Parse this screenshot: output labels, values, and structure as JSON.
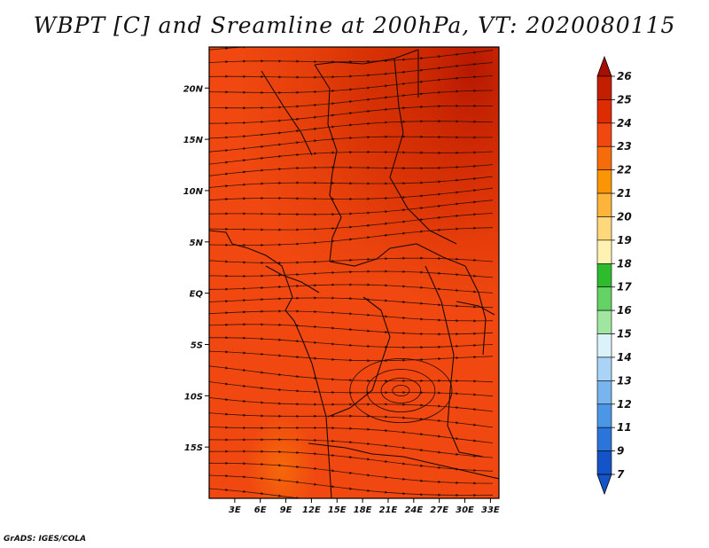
{
  "title": "WBPT [C] and Sreamline at 200hPa, VT: 2020080115",
  "footer": "GrADS: IGES/COLA",
  "map": {
    "lon_range": [
      0,
      34
    ],
    "lat_range": [
      -20,
      24
    ],
    "lon_ticks": [
      "3E",
      "6E",
      "9E",
      "12E",
      "15E",
      "18E",
      "21E",
      "24E",
      "27E",
      "30E",
      "33E"
    ],
    "lon_tick_values": [
      3,
      6,
      9,
      12,
      15,
      18,
      21,
      24,
      27,
      30,
      33
    ],
    "lat_ticks": [
      "20N",
      "15N",
      "10N",
      "5N",
      "EQ",
      "5S",
      "10S",
      "15S"
    ],
    "lat_tick_values": [
      20,
      15,
      10,
      5,
      0,
      -5,
      -10,
      -15
    ],
    "field_base_color": "#f04810",
    "features": {
      "cyclonic_circulation_center": {
        "lon": 22.5,
        "lat": -9.5
      },
      "warm_region": "north-east"
    }
  },
  "colorbar": {
    "levels": [
      "26",
      "25",
      "24",
      "23",
      "22",
      "21",
      "20",
      "19",
      "18",
      "17",
      "16",
      "15",
      "14",
      "13",
      "12",
      "11",
      "9",
      "7"
    ],
    "colors": [
      "#a50f00",
      "#c41e00",
      "#dc2c00",
      "#f04810",
      "#f66c0a",
      "#fa9606",
      "#fcb43a",
      "#fed87a",
      "#fef2b2",
      "#2ebc2e",
      "#64d264",
      "#a0e6a0",
      "#dcf2fa",
      "#aad4f6",
      "#78b4ee",
      "#4c96e6",
      "#2a74da",
      "#1454c8"
    ]
  }
}
